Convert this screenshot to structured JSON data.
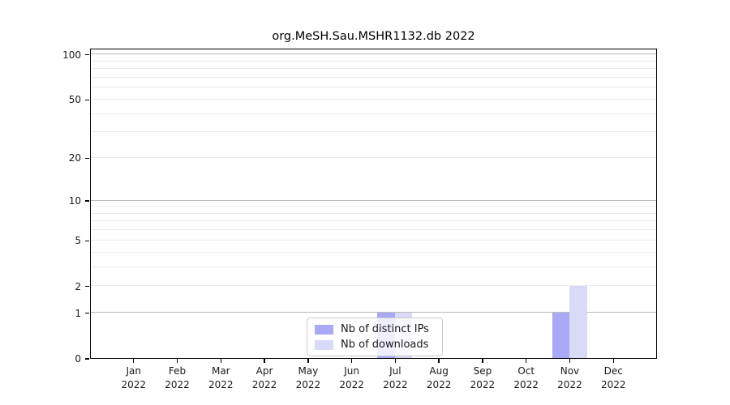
{
  "chart_data": {
    "type": "bar",
    "title": "org.MeSH.Sau.MSHR1132.db 2022",
    "categories": [
      "Jan",
      "Feb",
      "Mar",
      "Apr",
      "May",
      "Jun",
      "Jul",
      "Aug",
      "Sep",
      "Oct",
      "Nov",
      "Dec"
    ],
    "year": "2022",
    "series": [
      {
        "name": "Nb of distinct IPs",
        "color": "#a9a9f6",
        "values": [
          0,
          0,
          0,
          0,
          0,
          0,
          1,
          0,
          0,
          0,
          1,
          0
        ]
      },
      {
        "name": "Nb of downloads",
        "color": "#d9d9f8",
        "values": [
          0,
          0,
          0,
          0,
          0,
          0,
          1,
          0,
          0,
          0,
          2,
          0
        ]
      }
    ],
    "yscale": "log1p",
    "ylim": [
      0,
      110
    ],
    "ytick_values": [
      0,
      1,
      2,
      5,
      10,
      20,
      50,
      100
    ],
    "major_grid_values": [
      1,
      10,
      100
    ],
    "minor_grid_values": [
      2,
      3,
      4,
      5,
      6,
      7,
      8,
      9,
      20,
      30,
      40,
      50,
      60,
      70,
      80,
      90
    ],
    "grid": true,
    "legend_position": "lower center",
    "colors": {
      "axis": "#000000",
      "major_grid": "#bbbbbb",
      "minor_grid": "#ebebeb"
    }
  }
}
